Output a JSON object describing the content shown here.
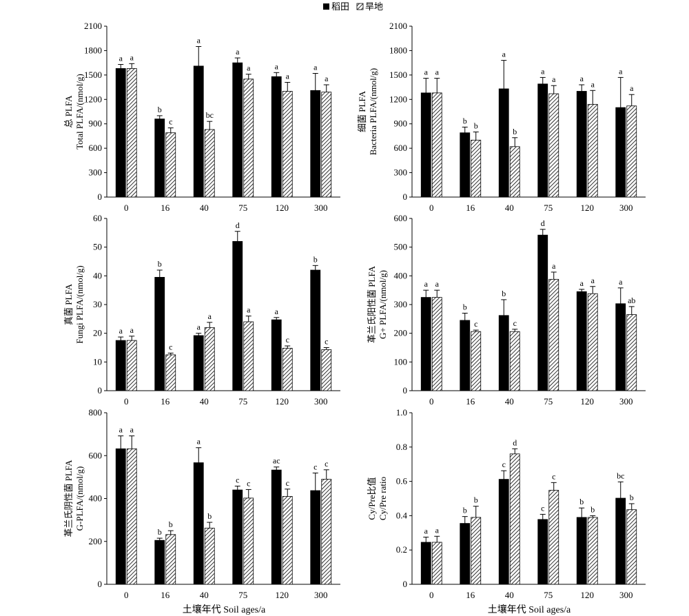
{
  "legend": {
    "paddy_label": "稻田",
    "upland_label": "旱地"
  },
  "colors": {
    "paddy": "#000000",
    "upland_hatch": "#000000",
    "background": "#ffffff"
  },
  "x_axis_title": "土壤年代 Soil ages/a",
  "chart_data": [
    {
      "type": "bar",
      "ylabel_cn": "总 PLFA",
      "ylabel_en": "Total PLFA/(nmol/g)",
      "categories": [
        "0",
        "16",
        "40",
        "75",
        "120",
        "300"
      ],
      "ylim": [
        0,
        2100
      ],
      "yticks": [
        "0",
        "300",
        "600",
        "900",
        "1200",
        "1500",
        "1800",
        "2100"
      ],
      "series": [
        {
          "name": "稻田",
          "values": [
            1580,
            960,
            1610,
            1650,
            1480,
            1310
          ],
          "errors": [
            50,
            40,
            240,
            60,
            50,
            210
          ],
          "letters": [
            "a",
            "b",
            "a",
            "a",
            "a",
            "a"
          ]
        },
        {
          "name": "旱地",
          "values": [
            1580,
            790,
            830,
            1450,
            1300,
            1290
          ],
          "errors": [
            60,
            60,
            100,
            60,
            110,
            90
          ],
          "letters": [
            "a",
            "c",
            "bc",
            "a",
            "a",
            "a"
          ]
        }
      ]
    },
    {
      "type": "bar",
      "ylabel_cn": "细菌 PLFA",
      "ylabel_en": "Bacteria PLFA/(nmol/g)",
      "categories": [
        "0",
        "16",
        "40",
        "75",
        "120",
        "300"
      ],
      "ylim": [
        0,
        2100
      ],
      "yticks": [
        "0",
        "300",
        "600",
        "900",
        "1200",
        "1500",
        "1800",
        "2100"
      ],
      "series": [
        {
          "name": "稻田",
          "values": [
            1280,
            790,
            1330,
            1390,
            1300,
            1100
          ],
          "errors": [
            180,
            70,
            350,
            80,
            80,
            370
          ],
          "letters": [
            "a",
            "b",
            "a",
            "a",
            "a",
            "a"
          ]
        },
        {
          "name": "旱地",
          "values": [
            1280,
            700,
            620,
            1270,
            1140,
            1120
          ],
          "errors": [
            180,
            100,
            110,
            100,
            170,
            140
          ],
          "letters": [
            "a",
            "b",
            "b",
            "a",
            "a",
            "a"
          ]
        }
      ]
    },
    {
      "type": "bar",
      "ylabel_cn": "真菌 PLFA",
      "ylabel_en": "Fungi PLFA/(nmol/g)",
      "categories": [
        "0",
        "16",
        "40",
        "75",
        "120",
        "300"
      ],
      "ylim": [
        0,
        60
      ],
      "yticks": [
        "0",
        "10",
        "20",
        "30",
        "40",
        "50",
        "60"
      ],
      "series": [
        {
          "name": "稻田",
          "values": [
            17.5,
            39.5,
            19.2,
            52,
            24.7,
            42
          ],
          "errors": [
            1.2,
            2.5,
            0.8,
            3.5,
            0.8,
            1.6
          ],
          "letters": [
            "a",
            "b",
            "a",
            "d",
            "a",
            "b"
          ]
        },
        {
          "name": "旱地",
          "values": [
            17.5,
            12.5,
            22,
            24,
            14.8,
            14.3
          ],
          "errors": [
            1.5,
            0.6,
            1.8,
            2.0,
            0.8,
            0.7
          ],
          "letters": [
            "a",
            "c",
            "a",
            "a",
            "c",
            "c"
          ]
        }
      ]
    },
    {
      "type": "bar",
      "ylabel_cn": "革兰氏阳性菌 PLFA",
      "ylabel_en": "G+ PLFA/(nmol/g)",
      "categories": [
        "0",
        "16",
        "40",
        "75",
        "120",
        "300"
      ],
      "ylim": [
        0,
        600
      ],
      "yticks": [
        "0",
        "100",
        "200",
        "300",
        "400",
        "500",
        "600"
      ],
      "series": [
        {
          "name": "稻田",
          "values": [
            325,
            245,
            262,
            542,
            345,
            303
          ],
          "errors": [
            25,
            25,
            55,
            20,
            8,
            55
          ],
          "letters": [
            "a",
            "b",
            "b",
            "d",
            "a",
            "a"
          ]
        },
        {
          "name": "旱地",
          "values": [
            325,
            206,
            206,
            388,
            338,
            265
          ],
          "errors": [
            25,
            5,
            8,
            25,
            25,
            28
          ],
          "letters": [
            "a",
            "c",
            "c",
            "a",
            "a",
            "ab"
          ]
        }
      ]
    },
    {
      "type": "bar",
      "ylabel_cn": "革兰氏阴性菌 PLFA",
      "ylabel_en": "G-PLFA/(nmol/g)",
      "categories": [
        "0",
        "16",
        "40",
        "75",
        "120",
        "300"
      ],
      "ylim": [
        0,
        800
      ],
      "yticks": [
        "0",
        "200",
        "400",
        "600",
        "800"
      ],
      "series": [
        {
          "name": "稻田",
          "values": [
            632,
            205,
            567,
            440,
            533,
            437
          ],
          "errors": [
            60,
            10,
            70,
            18,
            14,
            82
          ],
          "letters": [
            "a",
            "b",
            "a",
            "c",
            "ac",
            "c"
          ]
        },
        {
          "name": "旱地",
          "values": [
            632,
            232,
            262,
            402,
            410,
            490
          ],
          "errors": [
            60,
            18,
            27,
            40,
            34,
            44
          ],
          "letters": [
            "a",
            "b",
            "b",
            "c",
            "c",
            "c"
          ]
        }
      ]
    },
    {
      "type": "bar",
      "ylabel_cn": "Cy/Pre比值",
      "ylabel_en": "Cy/Pre ratio",
      "categories": [
        "0",
        "16",
        "40",
        "75",
        "120",
        "300"
      ],
      "ylim": [
        0,
        1.0
      ],
      "yticks": [
        "0",
        "0.2",
        "0.4",
        "0.6",
        "0.8",
        "1.0"
      ],
      "series": [
        {
          "name": "稻田",
          "values": [
            0.245,
            0.355,
            0.612,
            0.378,
            0.39,
            0.502
          ],
          "errors": [
            0.03,
            0.04,
            0.05,
            0.03,
            0.055,
            0.095
          ],
          "letters": [
            "a",
            "b",
            "c",
            "c",
            "b",
            "bc"
          ]
        },
        {
          "name": "旱地",
          "values": [
            0.245,
            0.39,
            0.76,
            0.548,
            0.39,
            0.435
          ],
          "errors": [
            0.035,
            0.065,
            0.03,
            0.045,
            0.01,
            0.035
          ],
          "letters": [
            "a",
            "b",
            "d",
            "c",
            "b",
            "b"
          ]
        }
      ]
    }
  ]
}
